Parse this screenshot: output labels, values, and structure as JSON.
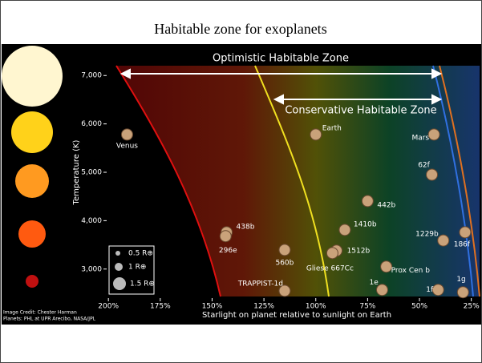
{
  "chart_data": {
    "type": "scatter",
    "title": "Habitable zone for exoplanets",
    "x_label": "Starlight on planet relative to sunlight on Earth",
    "y_label": "Temperature (K)",
    "xlim": [
      202,
      21
    ],
    "ylim": [
      2350,
      7650
    ],
    "xticks": [
      {
        "value": 200,
        "label": "200%"
      },
      {
        "value": 175,
        "label": "175%"
      },
      {
        "value": 150,
        "label": "150%"
      },
      {
        "value": 125,
        "label": "125%"
      },
      {
        "value": 100,
        "label": "100%"
      },
      {
        "value": 75,
        "label": "75%"
      },
      {
        "value": 50,
        "label": "50%"
      },
      {
        "value": 25,
        "label": "25%"
      }
    ],
    "yticks": [
      {
        "value": 3000,
        "label": "3,000"
      },
      {
        "value": 4000,
        "label": "4,000"
      },
      {
        "value": 5000,
        "label": "5,000"
      },
      {
        "value": 6000,
        "label": "6,000"
      },
      {
        "value": 7000,
        "label": "7,000"
      }
    ],
    "annotations": [
      "Optimistic Habitable Zone",
      "Conservative Habitable Zone"
    ],
    "size_legend": [
      "0.5 R⊕",
      "1 R⊕",
      "1.5 R⊕"
    ],
    "credits": [
      "Image Credit: Chester Harman",
      "Planets: PHL at UPR Arecibo, NASA/JPL"
    ],
    "color": "#c9a27a",
    "points": [
      {
        "label": "Venus",
        "x": 191,
        "y": 5780
      },
      {
        "label": "Earth",
        "x": 100,
        "y": 5780
      },
      {
        "label": "Mars",
        "x": 43,
        "y": 5780
      },
      {
        "label": "62f",
        "x": 44,
        "y": 4950
      },
      {
        "label": "442b",
        "x": 75,
        "y": 4405
      },
      {
        "label": "1410b",
        "x": 86,
        "y": 3810
      },
      {
        "label": "1229b",
        "x": 38.5,
        "y": 3590
      },
      {
        "label": "186f",
        "x": 28,
        "y": 3760
      },
      {
        "label": "438b",
        "x": 143,
        "y": 3760
      },
      {
        "label": "296e",
        "x": 143.5,
        "y": 3680
      },
      {
        "label": "560b",
        "x": 115,
        "y": 3395
      },
      {
        "label": "1512b",
        "x": 90,
        "y": 3380
      },
      {
        "label": "Gliese 667Cc",
        "x": 92,
        "y": 3330
      },
      {
        "label": "Prox Cen b",
        "x": 66,
        "y": 3050
      },
      {
        "label": "TRAPPIST-1d",
        "x": 115,
        "y": 2550
      },
      {
        "label": "1e",
        "x": 68,
        "y": 2570
      },
      {
        "label": "1f",
        "x": 41,
        "y": 2570
      },
      {
        "label": "1g",
        "x": 29,
        "y": 2520
      }
    ]
  }
}
